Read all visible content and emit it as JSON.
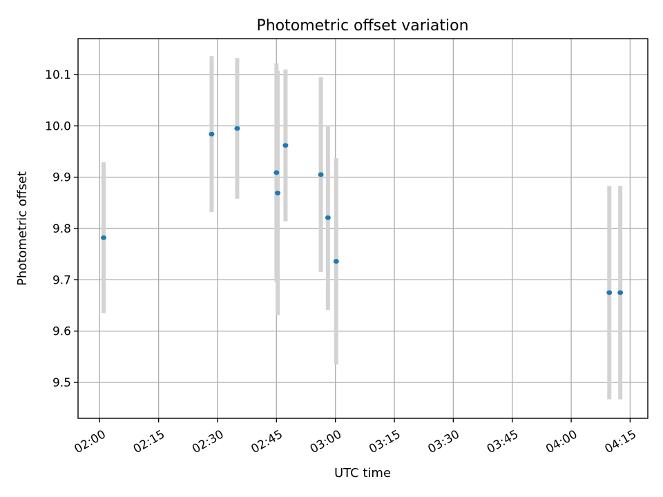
{
  "chart_data": {
    "type": "scatter",
    "title": "Photometric offset variation",
    "xlabel": "UTC time",
    "ylabel": "Photometric offset",
    "x_tick_labels": [
      "02:00",
      "02:15",
      "02:30",
      "02:45",
      "03:00",
      "03:15",
      "03:30",
      "03:45",
      "04:00",
      "04:15"
    ],
    "y_tick_labels": [
      "9.5",
      "9.6",
      "9.7",
      "9.8",
      "9.9",
      "10.0",
      "10.1"
    ],
    "xlim": [
      "01:54.5",
      "04:19.5"
    ],
    "ylim": [
      9.43,
      10.17
    ],
    "grid": true,
    "error_bar_color": "#d3d3d3",
    "point_color": "#1f77b4",
    "series": [
      {
        "points": [
          {
            "x": "02:01",
            "y": 9.782,
            "err": 0.147
          },
          {
            "x": "02:28.5",
            "y": 9.984,
            "err": 0.152
          },
          {
            "x": "02:35",
            "y": 9.995,
            "err": 0.137
          },
          {
            "x": "02:45",
            "y": 9.909,
            "err": 0.213
          },
          {
            "x": "02:45.3",
            "y": 9.869,
            "err": 0.238
          },
          {
            "x": "02:47.3",
            "y": 9.962,
            "err": 0.148
          },
          {
            "x": "02:56.3",
            "y": 9.905,
            "err": 0.19
          },
          {
            "x": "02:58.1",
            "y": 9.821,
            "err": 0.18
          },
          {
            "x": "03:00.2",
            "y": 9.736,
            "err": 0.201
          },
          {
            "x": "04:09.7",
            "y": 9.675,
            "err": 0.208
          },
          {
            "x": "04:12.5",
            "y": 9.675,
            "err": 0.208
          }
        ]
      }
    ]
  }
}
